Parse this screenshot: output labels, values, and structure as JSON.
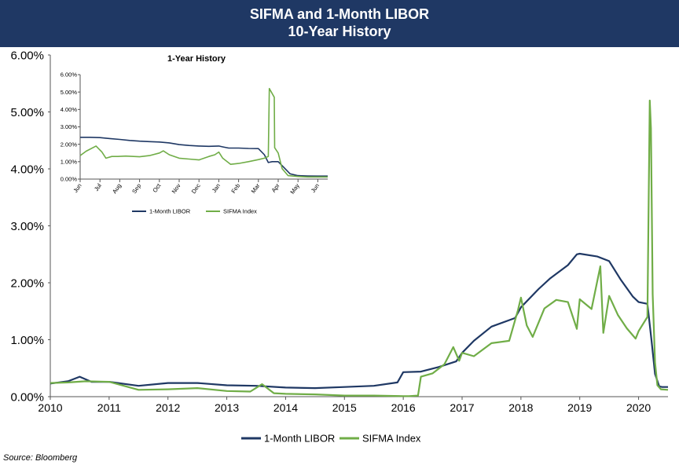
{
  "header": {
    "title_line1": "SIFMA and 1-Month LIBOR",
    "title_line2": "10-Year History"
  },
  "source": "Source: Bloomberg",
  "colors": {
    "header_bg": "#1f3864",
    "libor": "#1f3864",
    "sifma": "#70ad47"
  },
  "chart_data": [
    {
      "type": "line",
      "title": "",
      "xlabel": "",
      "ylabel": "",
      "xlim": [
        2010,
        2020.5
      ],
      "ylim": [
        0,
        6
      ],
      "x_ticks": [
        "2010",
        "2011",
        "2012",
        "2013",
        "2014",
        "2015",
        "2016",
        "2017",
        "2018",
        "2019",
        "2020"
      ],
      "y_ticks": [
        "0.00%",
        "1.00%",
        "2.00%",
        "3.00%",
        "4.00%",
        "5.00%",
        "6.00%"
      ],
      "grid": false,
      "legend": "bottom",
      "series": [
        {
          "name": "1-Month LIBOR",
          "color": "#1f3864",
          "x": [
            2010.0,
            2010.3,
            2010.5,
            2010.7,
            2011.0,
            2011.5,
            2012.0,
            2012.5,
            2013.0,
            2013.5,
            2014.0,
            2014.5,
            2015.0,
            2015.5,
            2015.9,
            2016.0,
            2016.3,
            2016.6,
            2016.9,
            2017.0,
            2017.2,
            2017.5,
            2017.9,
            2018.0,
            2018.3,
            2018.5,
            2018.8,
            2018.95,
            2019.0,
            2019.3,
            2019.5,
            2019.7,
            2019.9,
            2020.0,
            2020.15,
            2020.22,
            2020.28,
            2020.35,
            2020.4,
            2020.5
          ],
          "y": [
            0.23,
            0.27,
            0.35,
            0.26,
            0.26,
            0.19,
            0.24,
            0.24,
            0.2,
            0.19,
            0.16,
            0.15,
            0.17,
            0.19,
            0.25,
            0.43,
            0.44,
            0.52,
            0.62,
            0.77,
            0.98,
            1.23,
            1.38,
            1.57,
            1.89,
            2.08,
            2.31,
            2.5,
            2.51,
            2.46,
            2.38,
            2.05,
            1.76,
            1.66,
            1.63,
            0.99,
            0.4,
            0.18,
            0.17,
            0.17
          ]
        },
        {
          "name": "SIFMA Index",
          "color": "#70ad47",
          "x": [
            2010.0,
            2010.3,
            2010.6,
            2011.0,
            2011.5,
            2012.0,
            2012.5,
            2013.0,
            2013.4,
            2013.6,
            2013.8,
            2014.0,
            2014.5,
            2015.0,
            2015.5,
            2016.0,
            2016.1,
            2016.25,
            2016.3,
            2016.5,
            2016.7,
            2016.85,
            2016.95,
            2017.0,
            2017.2,
            2017.5,
            2017.8,
            2017.95,
            2018.0,
            2018.1,
            2018.2,
            2018.4,
            2018.6,
            2018.8,
            2018.95,
            2019.0,
            2019.2,
            2019.35,
            2019.4,
            2019.5,
            2019.65,
            2019.8,
            2019.95,
            2020.0,
            2020.15,
            2020.19,
            2020.21,
            2020.24,
            2020.28,
            2020.32,
            2020.38,
            2020.5
          ],
          "y": [
            0.24,
            0.25,
            0.27,
            0.26,
            0.12,
            0.13,
            0.15,
            0.1,
            0.09,
            0.22,
            0.06,
            0.05,
            0.04,
            0.02,
            0.02,
            0.01,
            0.01,
            0.02,
            0.35,
            0.41,
            0.57,
            0.87,
            0.63,
            0.77,
            0.71,
            0.94,
            0.98,
            1.52,
            1.74,
            1.25,
            1.05,
            1.55,
            1.7,
            1.66,
            1.19,
            1.71,
            1.54,
            2.29,
            1.12,
            1.77,
            1.43,
            1.2,
            1.02,
            1.15,
            1.4,
            5.2,
            4.71,
            1.8,
            0.6,
            0.2,
            0.13,
            0.12
          ]
        }
      ]
    },
    {
      "type": "line",
      "title": "1-Year History",
      "xlabel": "",
      "ylabel": "",
      "xlim": [
        0,
        12.5
      ],
      "ylim": [
        0,
        6
      ],
      "x_ticks": [
        "Jun",
        "Jul",
        "Aug",
        "Sep",
        "Oct",
        "Nov",
        "Dec",
        "Jan",
        "Feb",
        "Mar",
        "Apr",
        "May",
        "Jun"
      ],
      "y_ticks": [
        "0.00%",
        "1.00%",
        "2.00%",
        "3.00%",
        "4.00%",
        "5.00%",
        "6.00%"
      ],
      "grid": false,
      "legend": "bottom",
      "series": [
        {
          "name": "1-Month LIBOR",
          "color": "#1f3864",
          "x": [
            0,
            0.5,
            1.0,
            1.5,
            2.0,
            2.5,
            3.0,
            3.5,
            4.0,
            4.5,
            5.0,
            5.5,
            6.0,
            6.5,
            7.0,
            7.2,
            7.5,
            8.0,
            8.5,
            9.0,
            9.3,
            9.5,
            9.7,
            10.0,
            10.3,
            10.6,
            11.0,
            11.5,
            12.0,
            12.5
          ],
          "y": [
            2.4,
            2.4,
            2.38,
            2.33,
            2.28,
            2.22,
            2.18,
            2.15,
            2.13,
            2.08,
            1.98,
            1.93,
            1.9,
            1.88,
            1.9,
            1.85,
            1.78,
            1.78,
            1.76,
            1.75,
            1.4,
            0.95,
            1.0,
            1.0,
            0.65,
            0.3,
            0.2,
            0.18,
            0.17,
            0.17
          ]
        },
        {
          "name": "SIFMA Index",
          "color": "#70ad47",
          "x": [
            0,
            0.3,
            0.8,
            1.1,
            1.3,
            1.6,
            1.9,
            2.3,
            3.0,
            3.5,
            4.0,
            4.2,
            4.5,
            5.0,
            5.5,
            6.0,
            6.5,
            6.8,
            7.0,
            7.2,
            7.6,
            8.0,
            8.5,
            9.0,
            9.3,
            9.5,
            9.55,
            9.8,
            9.82,
            10.0,
            10.2,
            10.5,
            11.0,
            11.5,
            12.0,
            12.5
          ],
          "y": [
            1.35,
            1.6,
            1.9,
            1.55,
            1.2,
            1.3,
            1.3,
            1.32,
            1.28,
            1.35,
            1.5,
            1.62,
            1.4,
            1.2,
            1.15,
            1.1,
            1.3,
            1.4,
            1.55,
            1.2,
            0.85,
            0.9,
            1.0,
            1.12,
            1.2,
            1.3,
            5.2,
            4.7,
            1.8,
            1.5,
            0.6,
            0.2,
            0.15,
            0.12,
            0.12,
            0.12
          ]
        }
      ]
    }
  ]
}
